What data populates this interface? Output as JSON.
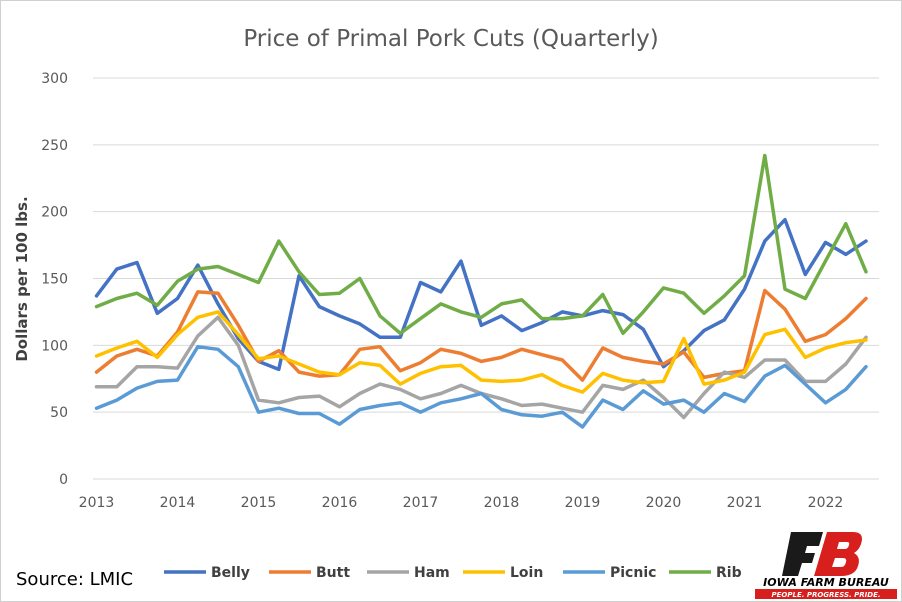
{
  "chart_data": {
    "type": "line",
    "title": "Price of Primal Pork Cuts (Quarterly)",
    "xlabel": "",
    "ylabel": "Dollars per 100 lbs.",
    "ylim": [
      0,
      300
    ],
    "y_ticks": [
      "0",
      "50",
      "100",
      "150",
      "200",
      "250",
      "300"
    ],
    "x_tick_labels": [
      "2013",
      "2014",
      "2015",
      "2016",
      "2017",
      "2018",
      "2019",
      "2020",
      "2021",
      "2022"
    ],
    "x_start_year": 2013,
    "points_per_year": 4,
    "grid": "horizontal",
    "legend": "bottom",
    "series": [
      {
        "name": "Belly",
        "color": "#4472C4",
        "values": [
          137,
          157,
          162,
          124,
          135,
          160,
          131,
          105,
          88,
          82,
          152,
          129,
          122,
          116,
          106,
          106,
          147,
          140,
          163,
          115,
          122,
          111,
          117,
          125,
          122,
          126,
          123,
          112,
          84,
          96,
          111,
          119,
          142,
          178,
          194,
          153,
          177,
          168,
          178
        ]
      },
      {
        "name": "Butt",
        "color": "#ED7D31",
        "values": [
          80,
          92,
          97,
          92,
          110,
          140,
          139,
          115,
          88,
          96,
          80,
          77,
          78,
          97,
          99,
          81,
          87,
          97,
          94,
          88,
          91,
          97,
          93,
          89,
          74,
          98,
          91,
          88,
          86,
          95,
          76,
          79,
          81,
          141,
          127,
          103,
          108,
          120,
          135
        ]
      },
      {
        "name": "Ham",
        "color": "#A5A5A5",
        "values": [
          69,
          69,
          84,
          84,
          83,
          107,
          121,
          100,
          59,
          57,
          61,
          62,
          54,
          64,
          71,
          67,
          60,
          64,
          70,
          64,
          60,
          55,
          56,
          53,
          50,
          70,
          67,
          74,
          61,
          46,
          64,
          80,
          76,
          89,
          89,
          73,
          73,
          86,
          106
        ]
      },
      {
        "name": "Loin",
        "color": "#FFC000",
        "values": [
          92,
          98,
          103,
          91,
          108,
          121,
          125,
          108,
          90,
          92,
          86,
          80,
          78,
          87,
          85,
          71,
          79,
          84,
          85,
          74,
          73,
          74,
          78,
          70,
          65,
          79,
          74,
          72,
          73,
          105,
          71,
          74,
          80,
          108,
          112,
          91,
          98,
          102,
          104
        ]
      },
      {
        "name": "Picnic",
        "color": "#5B9BD5",
        "values": [
          53,
          59,
          68,
          73,
          74,
          99,
          97,
          84,
          50,
          53,
          49,
          49,
          41,
          52,
          55,
          57,
          50,
          57,
          60,
          64,
          52,
          48,
          47,
          50,
          39,
          59,
          52,
          66,
          56,
          59,
          50,
          64,
          58,
          77,
          85,
          71,
          57,
          67,
          84
        ]
      },
      {
        "name": "Rib",
        "color": "#70AD47",
        "values": [
          129,
          135,
          139,
          130,
          148,
          157,
          159,
          153,
          147,
          178,
          155,
          138,
          139,
          150,
          122,
          109,
          120,
          131,
          125,
          121,
          131,
          134,
          120,
          120,
          122,
          138,
          109,
          125,
          143,
          139,
          124,
          137,
          152,
          242,
          142,
          135,
          163,
          191,
          155
        ]
      }
    ]
  },
  "source": "Source: LMIC",
  "logo": {
    "name": "IOWA FARM BUREAU",
    "tagline": "PEOPLE. PROGRESS. PRIDE.",
    "red": "#D7201E",
    "dark": "#1a1a1a"
  }
}
